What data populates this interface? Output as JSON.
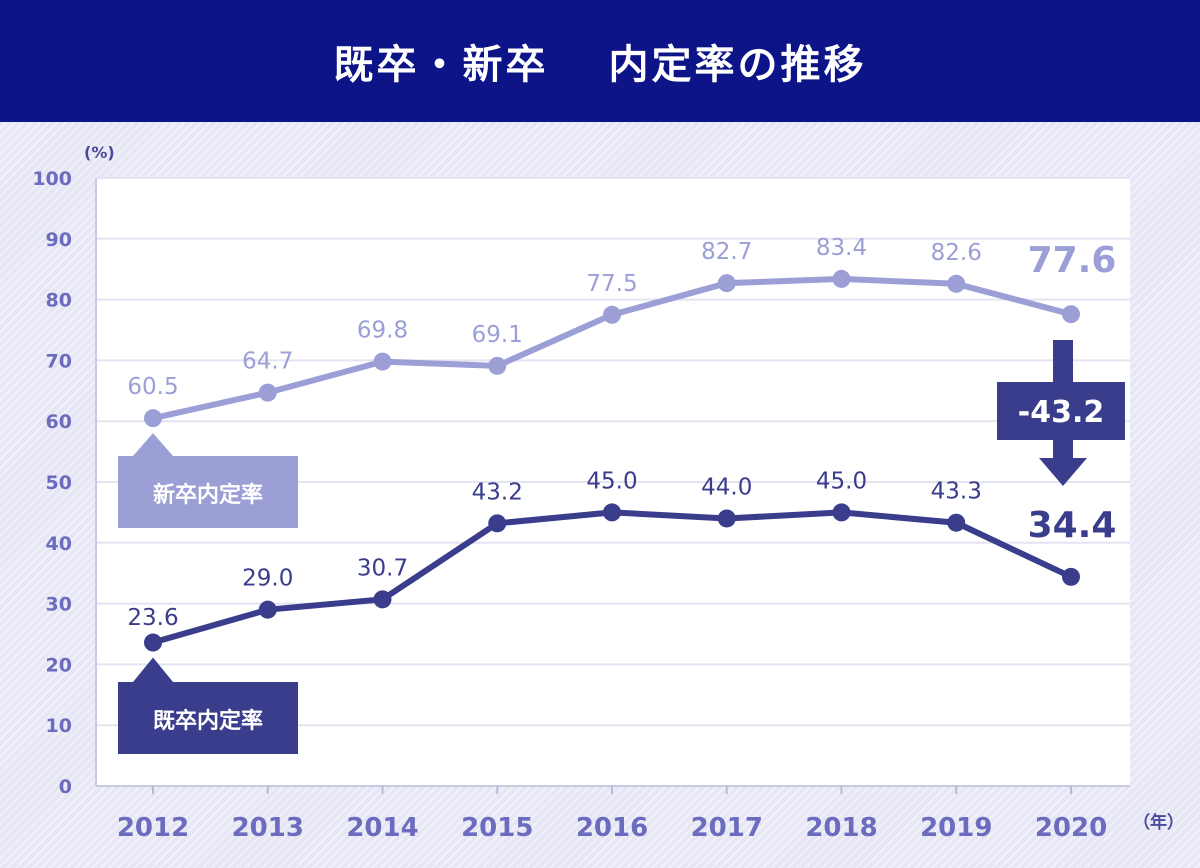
{
  "chart_data": {
    "type": "line",
    "title": "既卒・新卒　 内定率の推移",
    "x": [
      "2012",
      "2013",
      "2014",
      "2015",
      "2016",
      "2017",
      "2018",
      "2019",
      "2020"
    ],
    "xlabel": "（年）",
    "ylabel": "(%)",
    "ylim": [
      0,
      100
    ],
    "yticks": [
      "0",
      "10",
      "20",
      "30",
      "40",
      "50",
      "60",
      "70",
      "80",
      "90",
      "100"
    ],
    "grid": true,
    "series": [
      {
        "name": "新卒内定率",
        "values": [
          60.5,
          64.7,
          69.8,
          69.1,
          77.5,
          82.7,
          83.4,
          82.6,
          77.6
        ],
        "labels": [
          "60.5",
          "64.7",
          "69.8",
          "69.1",
          "77.5",
          "82.7",
          "83.4",
          "82.6",
          "77.6"
        ],
        "color": "#9b9fd6"
      },
      {
        "name": "既卒内定率",
        "values": [
          23.6,
          29.0,
          30.7,
          43.2,
          45.0,
          44.0,
          45.0,
          43.3,
          34.4
        ],
        "labels": [
          "23.6",
          "29.0",
          "30.7",
          "43.2",
          "45.0",
          "44.0",
          "45.0",
          "43.3",
          "34.4"
        ],
        "color": "#3a3c8c"
      }
    ],
    "annotations": [
      {
        "text": "-43.2",
        "color": "#3a3c8c"
      }
    ]
  }
}
